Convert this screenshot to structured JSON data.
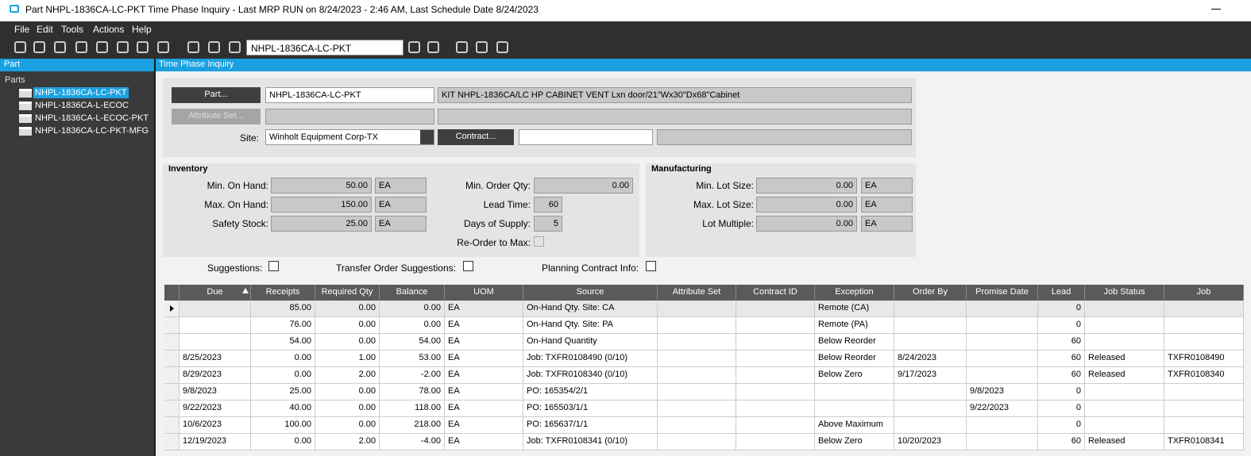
{
  "window": {
    "title": "Part NHPL-1836CA-LC-PKT Time Phase Inquiry  - Last MRP RUN on 8/24/2023 - 2:46 AM, Last Schedule Date  8/24/2023"
  },
  "menu": [
    "File",
    "Edit",
    "Tools",
    "Actions",
    "Help"
  ],
  "toolbar": {
    "part_field": "NHPL-1836CA-LC-PKT"
  },
  "left_panel": {
    "title": "Part",
    "tree_root": "Parts",
    "items": [
      "NHPL-1836CA-LC-PKT",
      "NHPL-1836CA-L-ECOC",
      "NHPL-1836CA-L-ECOC-PKT",
      "NHPL-1836CA-LC-PKT-MFG"
    ]
  },
  "main": {
    "title": "Time Phase Inquiry"
  },
  "form": {
    "part_button": "Part...",
    "part_value": "NHPL-1836CA-LC-PKT",
    "description": "KIT NHPL-1836CA/LC HP CABINET VENT Lxn door/21\"Wx30\"Dx68\"Cabinet",
    "attribute_button": "Attribute Set...",
    "site_label": "Site:",
    "site_value": "Winholt Equipment Corp-TX",
    "contract_button": "Contract..."
  },
  "inventory": {
    "title": "Inventory",
    "left": [
      {
        "label": "Min. On Hand:",
        "value": "50.00",
        "unit": "EA"
      },
      {
        "label": "Max. On Hand:",
        "value": "150.00",
        "unit": "EA"
      },
      {
        "label": "Safety Stock:",
        "value": "25.00",
        "unit": "EA"
      }
    ],
    "right": [
      {
        "label": "Min. Order Qty:",
        "value": "0.00"
      },
      {
        "label": "Lead Time:",
        "value": "60"
      },
      {
        "label": "Days of Supply:",
        "value": "5"
      },
      {
        "label": "Re-Order to Max:"
      }
    ]
  },
  "manufacturing": {
    "title": "Manufacturing",
    "fields": [
      {
        "label": "Min. Lot Size:",
        "value": "0.00",
        "unit": "EA"
      },
      {
        "label": "Max. Lot Size:",
        "value": "0.00",
        "unit": "EA"
      },
      {
        "label": "Lot Multiple:",
        "value": "0.00",
        "unit": "EA"
      }
    ]
  },
  "checkboxes": [
    "Suggestions:",
    "Transfer Order Suggestions:",
    "Planning Contract Info:"
  ],
  "grid": {
    "columns": [
      "Due",
      "Receipts",
      "Required Qty",
      "Balance",
      "UOM",
      "Source",
      "Attribute Set",
      "Contract ID",
      "Exception",
      "Order By",
      "Promise Date",
      "Lead",
      "Job Status",
      "Job"
    ],
    "rows": [
      [
        null,
        "85.00",
        "0.00",
        "0.00",
        "EA",
        "On-Hand Qty. Site: CA",
        null,
        null,
        "Remote (CA)",
        null,
        null,
        "0",
        null,
        null
      ],
      [
        null,
        "76.00",
        "0.00",
        "0.00",
        "EA",
        "On-Hand Qty. Site: PA",
        null,
        null,
        "Remote (PA)",
        null,
        null,
        "0",
        null,
        null
      ],
      [
        null,
        "54.00",
        "0.00",
        "54.00",
        "EA",
        "On-Hand Quantity",
        null,
        null,
        "Below Reorder",
        null,
        null,
        "60",
        null,
        null
      ],
      [
        "8/25/2023",
        "0.00",
        "1.00",
        "53.00",
        "EA",
        "Job: TXFR0108490 (0/10)",
        null,
        null,
        "Below Reorder",
        "8/24/2023",
        null,
        "60",
        "Released",
        "TXFR0108490"
      ],
      [
        "8/29/2023",
        "0.00",
        "2.00",
        "-2.00",
        "EA",
        "Job: TXFR0108340 (0/10)",
        null,
        null,
        "Below Zero",
        "9/17/2023",
        null,
        "60",
        "Released",
        "TXFR0108340"
      ],
      [
        "9/8/2023",
        "25.00",
        "0.00",
        "78.00",
        "EA",
        "PO: 165354/2/1",
        null,
        null,
        null,
        null,
        "9/8/2023",
        "0",
        null,
        null
      ],
      [
        "9/22/2023",
        "40.00",
        "0.00",
        "118.00",
        "EA",
        "PO: 165503/1/1",
        null,
        null,
        null,
        null,
        "9/22/2023",
        "0",
        null,
        null
      ],
      [
        "10/6/2023",
        "100.00",
        "0.00",
        "218.00",
        "EA",
        "PO: 165637/1/1",
        null,
        null,
        "Above Maximum",
        null,
        null,
        "0",
        null,
        null
      ],
      [
        "12/19/2023",
        "0.00",
        "2.00",
        "-4.00",
        "EA",
        "Job: TXFR0108341 (0/10)",
        null,
        null,
        "Below Zero",
        "10/20/2023",
        null,
        "60",
        "Released",
        "TXFR0108341"
      ]
    ]
  }
}
